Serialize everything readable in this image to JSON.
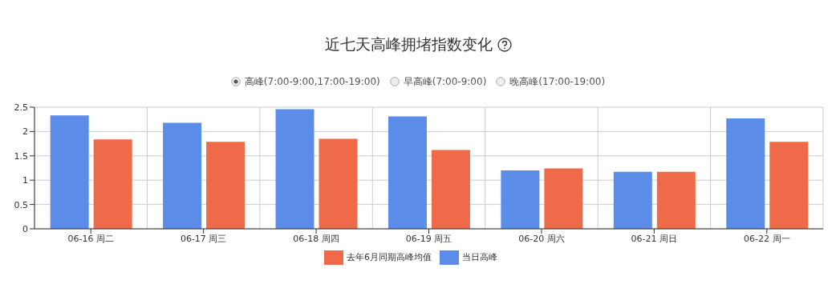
{
  "chart_data": {
    "type": "bar",
    "title": "近七天高峰拥堵指数变化",
    "annotations": [
      "高峰(7:00-9:00,17:00-19:00)",
      "早高峰(7:00-9:00)",
      "晚高峰(17:00-19:00)"
    ],
    "categories": [
      "06-16 周二",
      "06-17 周三",
      "06-18 周四",
      "06-19 周五",
      "06-20 周六",
      "06-21 周日",
      "06-22 周一"
    ],
    "series": [
      {
        "name": "当日高峰",
        "color": "#5b8ce8",
        "values": [
          2.33,
          2.18,
          2.46,
          2.31,
          1.2,
          1.17,
          2.27
        ]
      },
      {
        "name": "去年6月同期高峰均值",
        "color": "#ef6a49",
        "values": [
          1.84,
          1.79,
          1.85,
          1.62,
          1.24,
          1.17,
          1.79
        ]
      }
    ],
    "ylim": [
      0,
      2.5
    ],
    "yticks": [
      0,
      0.5,
      1,
      1.5,
      2,
      2.5
    ],
    "grid": true,
    "legend": "bottom"
  }
}
